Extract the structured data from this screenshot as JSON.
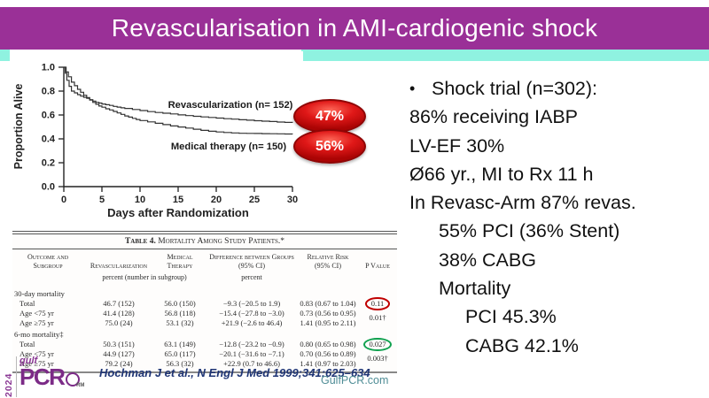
{
  "slide": {
    "title": "Revascularisation in AMI-cardiogenic shock",
    "title_bar_color": "#9a3097",
    "accent_strip_color": "#8ff2e0"
  },
  "chart_data": {
    "type": "line",
    "subtype": "kaplan-meier-step",
    "xlabel": "Days after Randomization",
    "ylabel": "Proportion Alive",
    "xlim": [
      0,
      30
    ],
    "ylim": [
      0.0,
      1.0
    ],
    "xticks": [
      0,
      5,
      10,
      15,
      20,
      25,
      30
    ],
    "yticks": [
      1.0,
      0.8,
      0.6,
      0.4,
      0.2,
      0.0
    ],
    "grid": "off",
    "line_color": "#333333",
    "series": [
      {
        "name": "Revascularization (n= 152)",
        "x": [
          0,
          0.2,
          0.4,
          0.7,
          1,
          1.4,
          1.8,
          2.2,
          2.6,
          3,
          3.4,
          3.8,
          4.2,
          4.6,
          5,
          5.5,
          6,
          6.5,
          7,
          7.5,
          8,
          9,
          10,
          11,
          12,
          13,
          14,
          15,
          16,
          17,
          18,
          19,
          20,
          21,
          22,
          23,
          24,
          25,
          26,
          27,
          28,
          29,
          30
        ],
        "y": [
          1.0,
          0.95,
          0.89,
          0.84,
          0.8,
          0.785,
          0.77,
          0.758,
          0.748,
          0.74,
          0.728,
          0.716,
          0.706,
          0.7,
          0.692,
          0.686,
          0.68,
          0.672,
          0.666,
          0.66,
          0.655,
          0.646,
          0.637,
          0.628,
          0.621,
          0.615,
          0.609,
          0.601,
          0.595,
          0.589,
          0.584,
          0.579,
          0.574,
          0.569,
          0.565,
          0.56,
          0.556,
          0.552,
          0.548,
          0.545,
          0.541,
          0.538,
          0.535
        ]
      },
      {
        "name": "Medical therapy (n= 150)",
        "x": [
          0,
          0.3,
          0.6,
          1,
          1.4,
          1.8,
          2.2,
          2.6,
          3,
          3.4,
          3.8,
          4.2,
          4.6,
          5,
          5.5,
          6,
          6.5,
          7,
          7.5,
          8,
          8.5,
          9,
          9.5,
          10,
          11,
          12,
          13,
          14,
          15,
          16,
          17,
          18,
          19,
          20,
          21,
          22,
          23,
          24,
          25,
          26,
          27,
          28,
          29,
          30
        ],
        "y": [
          1.0,
          0.96,
          0.92,
          0.875,
          0.845,
          0.815,
          0.79,
          0.765,
          0.745,
          0.725,
          0.705,
          0.69,
          0.675,
          0.665,
          0.652,
          0.642,
          0.63,
          0.617,
          0.605,
          0.592,
          0.582,
          0.572,
          0.562,
          0.553,
          0.542,
          0.53,
          0.519,
          0.508,
          0.499,
          0.49,
          0.481,
          0.471,
          0.464,
          0.458,
          0.453,
          0.45,
          0.447,
          0.446,
          0.445,
          0.444,
          0.443,
          0.442,
          0.441,
          0.44
        ]
      }
    ],
    "callouts": [
      {
        "label": "47%",
        "color": "#cc1111"
      },
      {
        "label": "56%",
        "color": "#cc1111"
      }
    ]
  },
  "table": {
    "title_lead": "Table 4.",
    "title_rest": " Mortality Among Study Patients.*",
    "columns": [
      "Outcome and Subgroup",
      "Revascularization",
      "Medical Therapy",
      "Difference between Groups (95% CI)",
      "Relative Risk (95% CI)",
      "P Value"
    ],
    "units_percent_number": "percent (number in subgroup)",
    "units_percent": "percent",
    "sections": [
      {
        "header": "30-day mortality",
        "rows": [
          {
            "label": "Total",
            "revasc": "46.7 (152)",
            "medical": "56.0 (150)",
            "diff": "−9.3  (−20.5 to 1.9)",
            "rr": "0.83 (0.67 to 1.04)",
            "p": "0.11",
            "p_circle": "red"
          },
          {
            "label": "Age <75 yr",
            "revasc": "41.4 (128)",
            "medical": "56.8 (118)",
            "diff": "−15.4 (−27.8 to −3.0)",
            "rr": "0.73 (0.56 to 0.95)"
          },
          {
            "label": "Age ≥75 yr",
            "revasc": "75.0 (24)",
            "medical": "53.1 (32)",
            "diff": "+21.9 (−2.6 to 46.4)",
            "rr": "1.41 (0.95 to 2.11)"
          }
        ],
        "age_pair_p": "0.01†"
      },
      {
        "header": "6-mo mortality‡",
        "rows": [
          {
            "label": "Total",
            "revasc": "50.3 (151)",
            "medical": "63.1 (149)",
            "diff": "−12.8 (−23.2 to −0.9)",
            "rr": "0.80 (0.65 to 0.98)",
            "p": "0.027",
            "p_circle": "green"
          },
          {
            "label": "Age <75 yr",
            "revasc": "44.9 (127)",
            "medical": "65.0 (117)",
            "diff": "−20.1 (−31.6 to −7.1)",
            "rr": "0.70 (0.56 to 0.89)"
          },
          {
            "label": "Age ≥75 yr",
            "revasc": "79.2 (24)",
            "medical": "56.3 (32)",
            "diff": "+22.9 (0.7 to 46.6)",
            "rr": "1.41 (0.97 to 2.03)"
          }
        ],
        "age_pair_p": "0.003†"
      }
    ]
  },
  "bullets": {
    "bullet_char": "•",
    "lines": [
      {
        "text": "Shock trial (n=302):",
        "indent": 0,
        "bullet": true
      },
      {
        "text": "86% receiving IABP",
        "indent": 0
      },
      {
        "text": "LV-EF 30%",
        "indent": 0
      },
      {
        "text": "Ø66 yr., MI to Rx 11 h",
        "indent": 0
      },
      {
        "text": "In Revasc-Arm 87% revas.",
        "indent": 0
      },
      {
        "text": "55% PCI (36% Stent)",
        "indent": 1
      },
      {
        "text": "38% CABG",
        "indent": 1
      },
      {
        "text": "Mortality",
        "indent": 1
      },
      {
        "text": "PCI 45.3%",
        "indent": 2
      },
      {
        "text": "CABG 42.1%",
        "indent": 2
      }
    ]
  },
  "footer": {
    "citation": "Hochman J et al., N Engl J Med 1999;341:625–634",
    "website": "GulfPCR.com",
    "logo": {
      "year": "2024",
      "gulf": "gulf",
      "pcr": "PCR",
      "rm": "RM"
    }
  }
}
